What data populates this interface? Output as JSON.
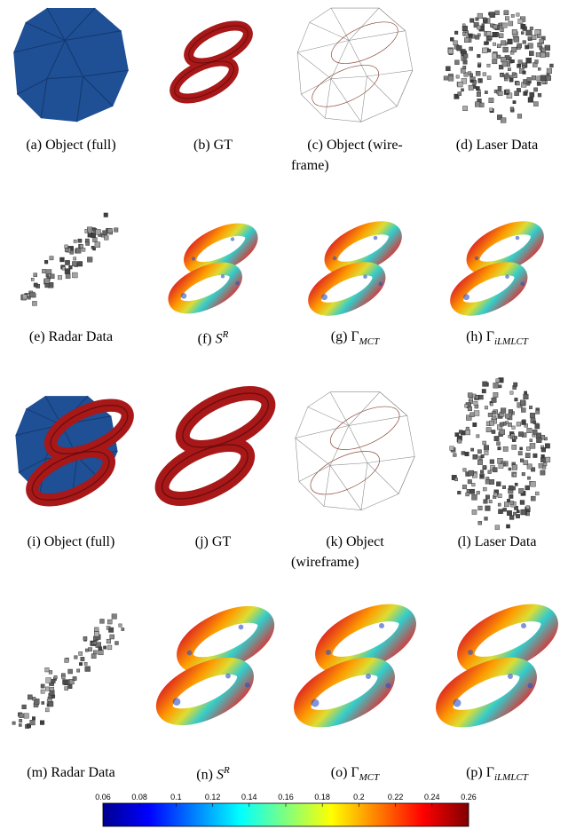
{
  "figure": {
    "rows": [
      [
        {
          "tag": "(a)",
          "text": "Object (full)"
        },
        {
          "tag": "(b)",
          "text": "GT"
        },
        {
          "tag": "(c)",
          "text": "Object (wire-",
          "continuation": "frame)"
        },
        {
          "tag": "(d)",
          "text": "Laser Data"
        }
      ],
      [
        {
          "tag": "(e)",
          "text": "Radar Data"
        },
        {
          "tag": "(f)",
          "text": "S",
          "sup": "R"
        },
        {
          "tag": "(g)",
          "text": "Γ",
          "sub": "MCT"
        },
        {
          "tag": "(h)",
          "text": "Γ",
          "sub": "iLMLCT"
        }
      ],
      [
        {
          "tag": "(i)",
          "text": "Object (full)"
        },
        {
          "tag": "(j)",
          "text": "GT"
        },
        {
          "tag": "(k)",
          "text": "Object",
          "continuation": "(wireframe)"
        },
        {
          "tag": "(l)",
          "text": "Laser Data"
        }
      ],
      [
        {
          "tag": "(m)",
          "text": "Radar Data"
        },
        {
          "tag": "(n)",
          "text": "S",
          "sup": "R"
        },
        {
          "tag": "(o)",
          "text": "Γ",
          "sub": "MCT"
        },
        {
          "tag": "(p)",
          "text": "Γ",
          "sub": "iLMLCT"
        }
      ]
    ]
  },
  "colorbar": {
    "range": [
      0.06,
      0.26
    ],
    "ticks": [
      0.06,
      0.08,
      0.1,
      0.12,
      0.14,
      0.16,
      0.18,
      0.2,
      0.22,
      0.24,
      0.26
    ]
  }
}
